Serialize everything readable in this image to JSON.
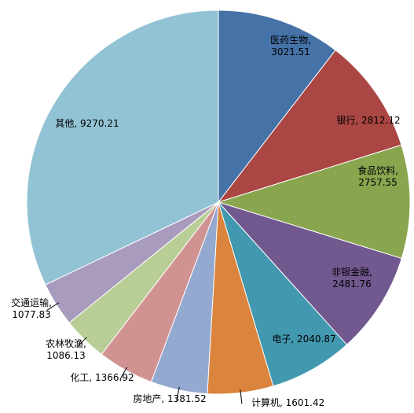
{
  "chart_data": {
    "type": "pie",
    "title": "",
    "start": "12 o'clock",
    "direction": "clockwise",
    "legend": "none",
    "slices": [
      {
        "name": "医药生物",
        "value": 3021.51,
        "value_text": "3021.51",
        "color": "#4572a7"
      },
      {
        "name": "银行",
        "value": 2812.12,
        "value_text": "2812.12",
        "color": "#aa4643"
      },
      {
        "name": "食品饮料",
        "value": 2757.55,
        "value_text": "2757.55",
        "color": "#89a54e"
      },
      {
        "name": "非银金融",
        "value": 2481.76,
        "value_text": "2481.76",
        "color": "#71588f"
      },
      {
        "name": "电子",
        "value": 2040.87,
        "value_text": "2040.87",
        "color": "#4198af"
      },
      {
        "name": "计算机",
        "value": 1601.42,
        "value_text": "1601.42",
        "color": "#db843d"
      },
      {
        "name": "房地产",
        "value": 1381.52,
        "value_text": "1381.52",
        "color": "#93a9cf"
      },
      {
        "name": "化工",
        "value": 1366.92,
        "value_text": "1366.92",
        "color": "#d19392"
      },
      {
        "name": "农林牧渔",
        "value": 1086.13,
        "value_text": "1086.13",
        "color": "#b9cd96"
      },
      {
        "name": "交通运输",
        "value": 1077.83,
        "value_text": "1077.83",
        "color": "#a99bbd"
      },
      {
        "name": "其他",
        "value": 9270.21,
        "value_text": "9270.21",
        "color": "#92c3d4"
      }
    ]
  }
}
